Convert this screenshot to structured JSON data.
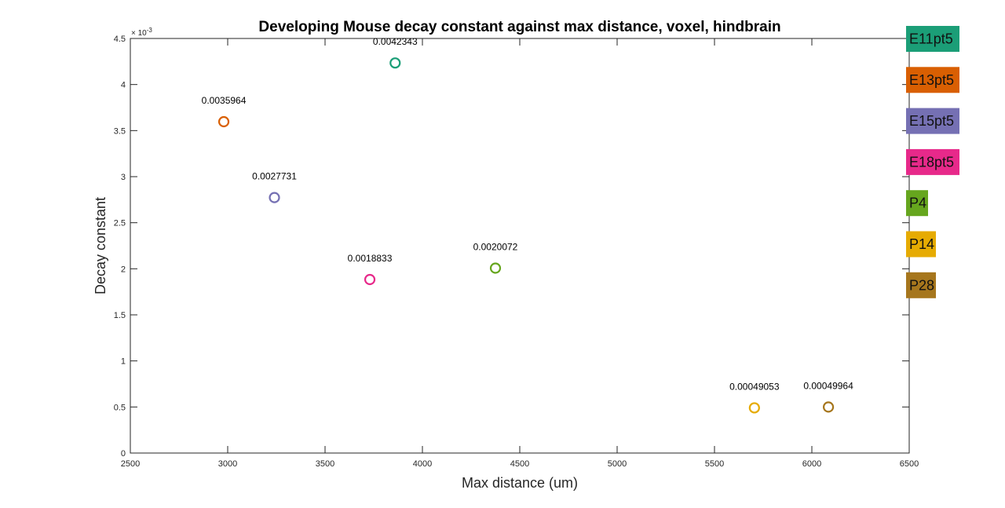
{
  "chart_data": {
    "type": "scatter",
    "title": "Developing Mouse decay constant against max distance, voxel, hindbrain",
    "xlabel": "Max distance (um)",
    "ylabel": "Decay constant",
    "xlim": [
      2500,
      6500
    ],
    "ylim": [
      0,
      0.0045
    ],
    "x_ticks": [
      "2500",
      "3000",
      "3500",
      "4000",
      "4500",
      "5000",
      "5500",
      "6000",
      "6500"
    ],
    "y_ticks": [
      "0",
      "0.5",
      "1",
      "1.5",
      "2",
      "2.5",
      "3",
      "3.5",
      "4",
      "4.5"
    ],
    "y_multiplier": {
      "base": "× 10",
      "exponent": "-3"
    },
    "grid": false,
    "legend_position": "right",
    "marker": "open-circle",
    "series": [
      {
        "name": "E11pt5",
        "color": "#1b9e77",
        "x": 3860,
        "y": 0.0042343,
        "label": "0.0042343"
      },
      {
        "name": "E13pt5",
        "color": "#d95f02",
        "x": 2980,
        "y": 0.0035964,
        "label": "0.0035964"
      },
      {
        "name": "E15pt5",
        "color": "#7570b3",
        "x": 3240,
        "y": 0.0027731,
        "label": "0.0027731"
      },
      {
        "name": "E18pt5",
        "color": "#e7298a",
        "x": 3730,
        "y": 0.0018833,
        "label": "0.0018833"
      },
      {
        "name": "P4",
        "color": "#66a61e",
        "x": 4375,
        "y": 0.0020072,
        "label": "0.0020072"
      },
      {
        "name": "P14",
        "color": "#e6ab02",
        "x": 5705,
        "y": 0.00049053,
        "label": "0.00049053"
      },
      {
        "name": "P28",
        "color": "#a6761d",
        "x": 6085,
        "y": 0.00049964,
        "label": "0.00049964"
      }
    ]
  }
}
